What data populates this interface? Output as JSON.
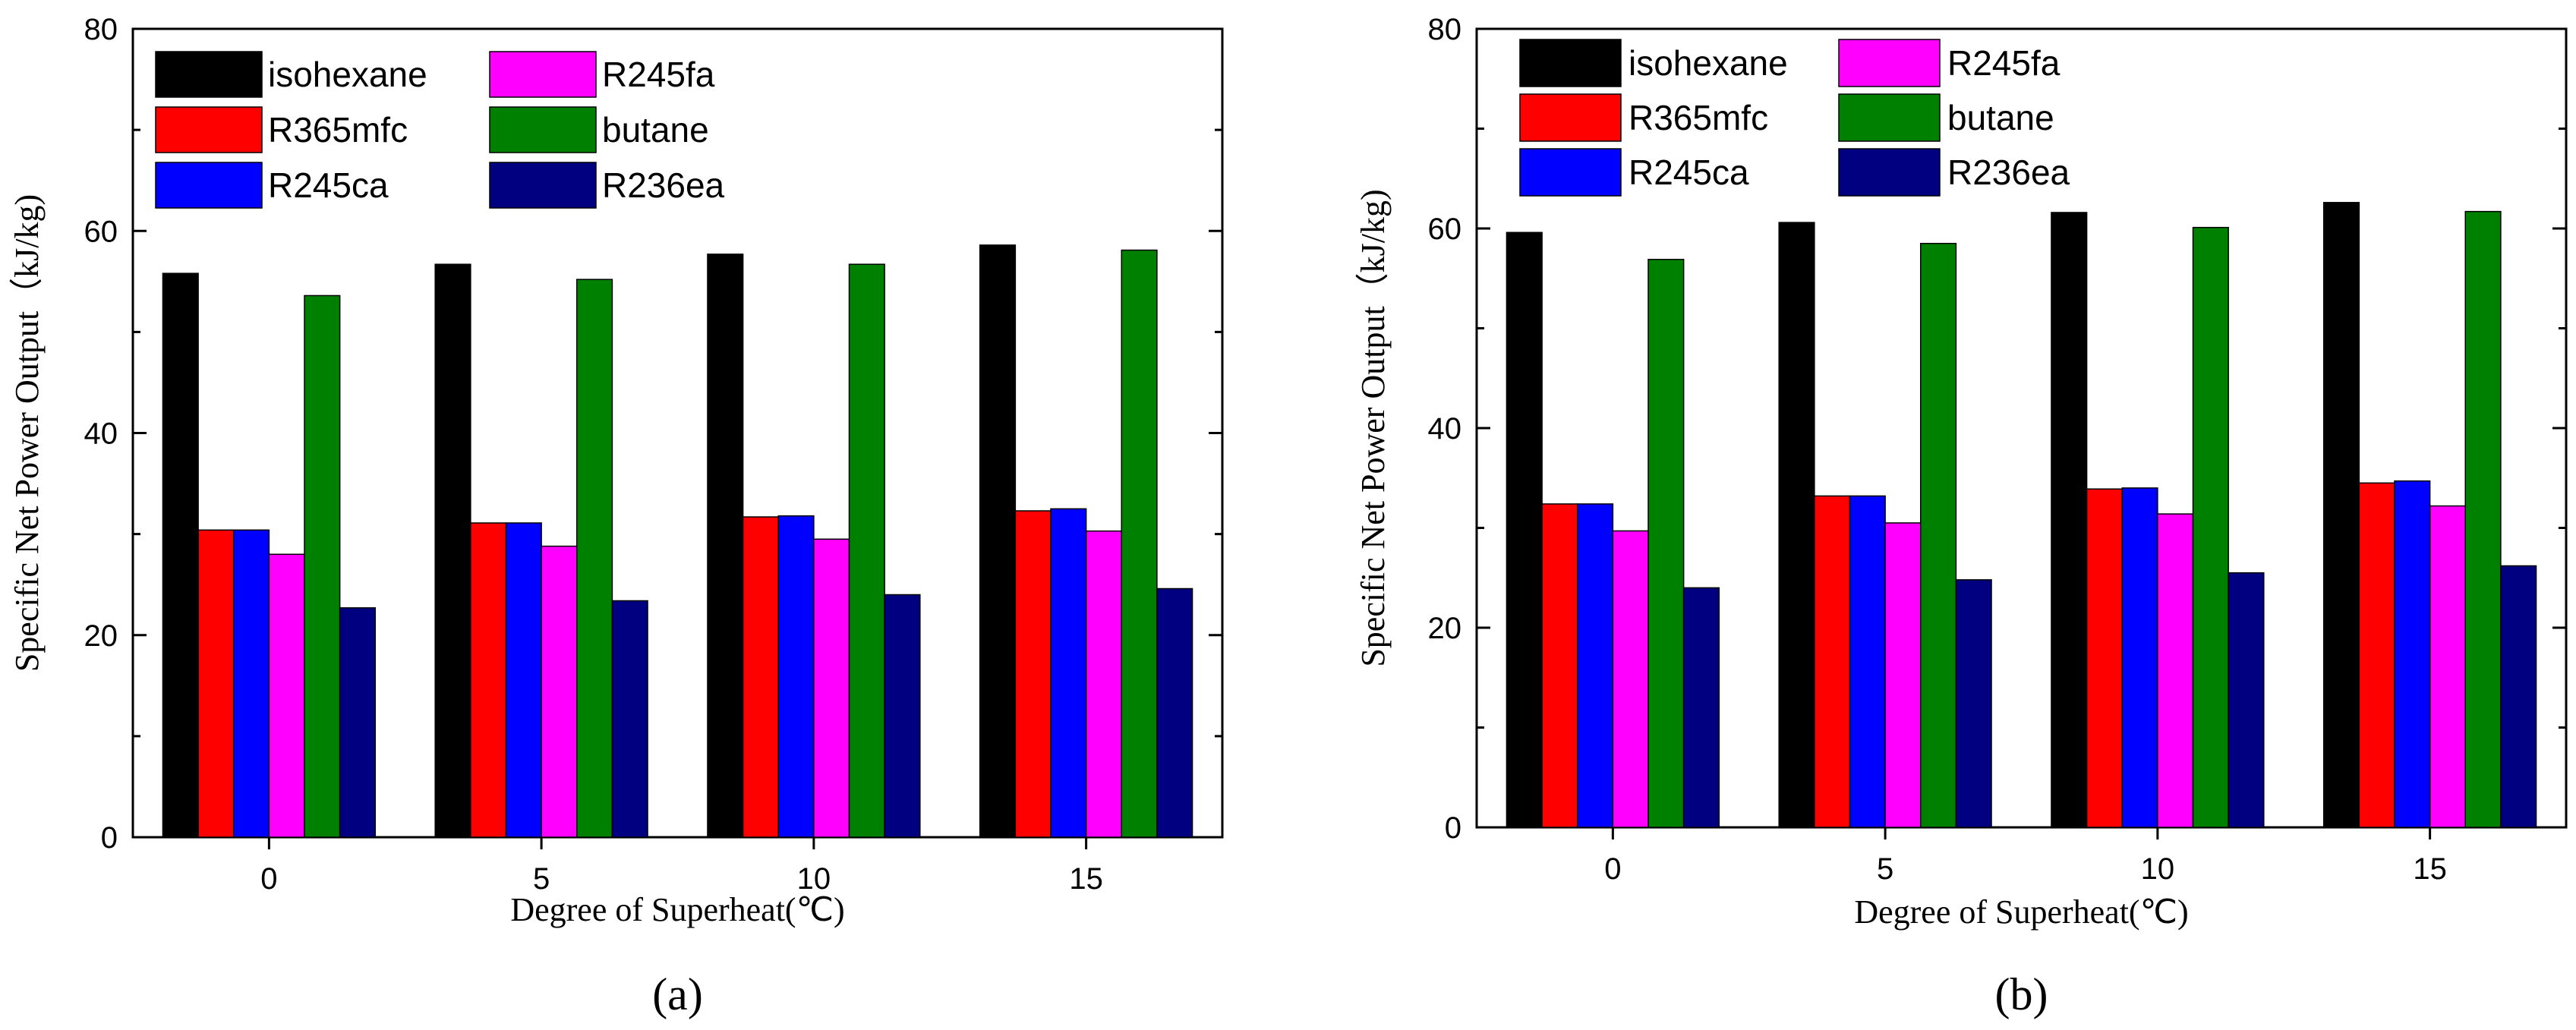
{
  "chart_data": [
    {
      "type": "bar",
      "panel": "a",
      "panel_label": "(a)",
      "categories": [
        "0",
        "5",
        "10",
        "15"
      ],
      "series": [
        {
          "name": "isohexane",
          "color": "#000000",
          "values": [
            55.8,
            56.7,
            57.7,
            58.6
          ]
        },
        {
          "name": "R365mfc",
          "color": "#ff0000",
          "values": [
            30.4,
            31.1,
            31.7,
            32.3
          ]
        },
        {
          "name": "R245ca",
          "color": "#0000ff",
          "values": [
            30.4,
            31.1,
            31.8,
            32.5
          ]
        },
        {
          "name": "R245fa",
          "color": "#ff00ff",
          "values": [
            28.0,
            28.8,
            29.5,
            30.3
          ]
        },
        {
          "name": "butane",
          "color": "#008000",
          "values": [
            53.6,
            55.2,
            56.7,
            58.1
          ]
        },
        {
          "name": "R236ea",
          "color": "#000080",
          "values": [
            22.7,
            23.4,
            24.0,
            24.6
          ]
        }
      ],
      "title": "",
      "xlabel": "Degree of Superheat(℃)",
      "ylabel": "Specific Net Power Output（kJ/kg)",
      "ylim": [
        0,
        80
      ],
      "yticks": [
        "0",
        "20",
        "40",
        "60",
        "80"
      ],
      "legend_position": "top-left"
    },
    {
      "type": "bar",
      "panel": "b",
      "panel_label": "(b)",
      "categories": [
        "0",
        "5",
        "10",
        "15"
      ],
      "series": [
        {
          "name": "isohexane",
          "color": "#000000",
          "values": [
            59.6,
            60.6,
            61.6,
            62.6
          ]
        },
        {
          "name": "R365mfc",
          "color": "#ff0000",
          "values": [
            32.4,
            33.2,
            33.9,
            34.5
          ]
        },
        {
          "name": "R245ca",
          "color": "#0000ff",
          "values": [
            32.4,
            33.2,
            34.0,
            34.7
          ]
        },
        {
          "name": "R245fa",
          "color": "#ff00ff",
          "values": [
            29.7,
            30.5,
            31.4,
            32.2
          ]
        },
        {
          "name": "butane",
          "color": "#008000",
          "values": [
            56.9,
            58.5,
            60.1,
            61.7
          ]
        },
        {
          "name": "R236ea",
          "color": "#000080",
          "values": [
            24.0,
            24.8,
            25.5,
            26.2
          ]
        }
      ],
      "title": "",
      "xlabel": "Degree of Superheat(℃)",
      "ylabel": "Specific Net Power Output（kJ/kg)",
      "ylim": [
        0,
        80
      ],
      "yticks": [
        "0",
        "20",
        "40",
        "60",
        "80"
      ],
      "legend_position": "top-left"
    }
  ]
}
